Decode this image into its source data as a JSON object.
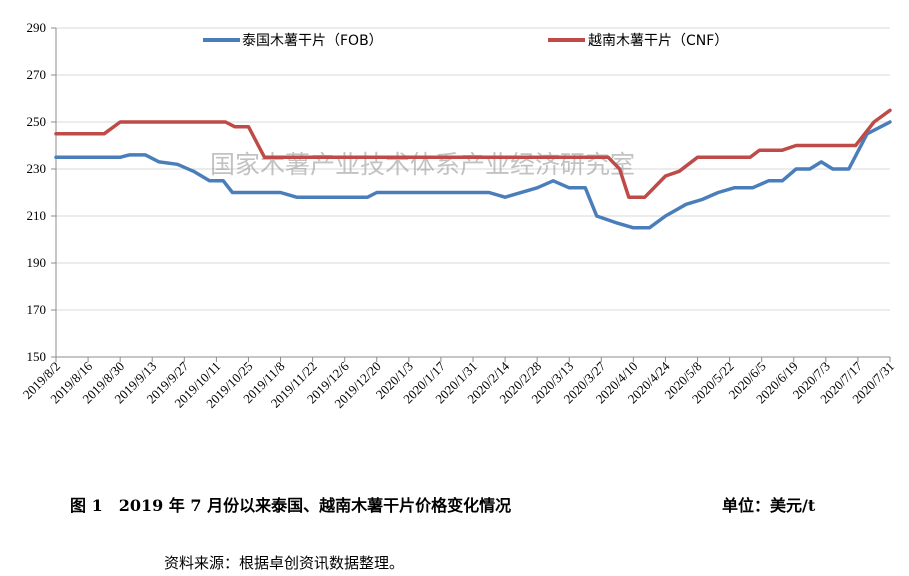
{
  "figure": {
    "title": "图 1　2019 年 7 月份以来泰国、越南木薯干片价格变化情况",
    "unit": "单位：美元/t",
    "source": "资料来源：根据卓创资讯数据整理。",
    "watermark": "国家木薯产业技术体系产业经济研究室"
  },
  "chart_data": {
    "type": "line",
    "ylim": [
      150,
      290
    ],
    "yticks": [
      150,
      170,
      190,
      210,
      230,
      250,
      270,
      290
    ],
    "xlim": [
      "2019-08-02",
      "2020-07-31"
    ],
    "xtick_labels": [
      "2019/8/2",
      "2019/8/16",
      "2019/8/30",
      "2019/9/13",
      "2019/9/27",
      "2019/10/11",
      "2019/10/25",
      "2019/11/8",
      "2019/11/22",
      "2019/12/6",
      "2019/12/20",
      "2020/1/3",
      "2020/1/17",
      "2020/1/31",
      "2020/2/14",
      "2020/2/28",
      "2020/3/13",
      "2020/3/27",
      "2020/4/10",
      "2020/4/24",
      "2020/5/8",
      "2020/5/22",
      "2020/6/5",
      "2020/6/19",
      "2020/7/3",
      "2020/7/17",
      "2020/7/31"
    ],
    "legend_position": "top",
    "series": [
      {
        "name": "泰国木薯干片（FOB）",
        "color": "#4a7ebb",
        "points": [
          [
            "2019-08-02",
            235
          ],
          [
            "2019-08-30",
            235
          ],
          [
            "2019-09-03",
            236
          ],
          [
            "2019-09-10",
            236
          ],
          [
            "2019-09-16",
            233
          ],
          [
            "2019-09-24",
            232
          ],
          [
            "2019-10-01",
            229
          ],
          [
            "2019-10-08",
            225
          ],
          [
            "2019-10-14",
            225
          ],
          [
            "2019-10-18",
            220
          ],
          [
            "2019-11-01",
            220
          ],
          [
            "2019-11-08",
            220
          ],
          [
            "2019-11-15",
            218
          ],
          [
            "2019-12-16",
            218
          ],
          [
            "2019-12-20",
            220
          ],
          [
            "2020-02-07",
            220
          ],
          [
            "2020-02-14",
            218
          ],
          [
            "2020-02-28",
            222
          ],
          [
            "2020-03-06",
            225
          ],
          [
            "2020-03-13",
            222
          ],
          [
            "2020-03-20",
            222
          ],
          [
            "2020-03-25",
            210
          ],
          [
            "2020-04-03",
            207
          ],
          [
            "2020-04-10",
            205
          ],
          [
            "2020-04-17",
            205
          ],
          [
            "2020-04-24",
            210
          ],
          [
            "2020-05-03",
            215
          ],
          [
            "2020-05-10",
            217
          ],
          [
            "2020-05-17",
            220
          ],
          [
            "2020-05-24",
            222
          ],
          [
            "2020-06-01",
            222
          ],
          [
            "2020-06-08",
            225
          ],
          [
            "2020-06-14",
            225
          ],
          [
            "2020-06-20",
            230
          ],
          [
            "2020-06-26",
            230
          ],
          [
            "2020-07-01",
            233
          ],
          [
            "2020-07-06",
            230
          ],
          [
            "2020-07-13",
            230
          ],
          [
            "2020-07-21",
            245
          ],
          [
            "2020-07-31",
            250
          ]
        ]
      },
      {
        "name": "越南木薯干片（CNF）",
        "color": "#be4b48",
        "points": [
          [
            "2019-08-02",
            245
          ],
          [
            "2019-08-23",
            245
          ],
          [
            "2019-08-30",
            250
          ],
          [
            "2019-10-15",
            250
          ],
          [
            "2019-10-19",
            248
          ],
          [
            "2019-10-25",
            248
          ],
          [
            "2019-11-01",
            235
          ],
          [
            "2020-03-30",
            235
          ],
          [
            "2020-04-04",
            230
          ],
          [
            "2020-04-08",
            218
          ],
          [
            "2020-04-15",
            218
          ],
          [
            "2020-04-24",
            227
          ],
          [
            "2020-04-30",
            229
          ],
          [
            "2020-05-08",
            235
          ],
          [
            "2020-05-31",
            235
          ],
          [
            "2020-06-04",
            238
          ],
          [
            "2020-06-14",
            238
          ],
          [
            "2020-06-20",
            240
          ],
          [
            "2020-07-16",
            240
          ],
          [
            "2020-07-24",
            250
          ],
          [
            "2020-07-31",
            255
          ]
        ]
      }
    ]
  }
}
